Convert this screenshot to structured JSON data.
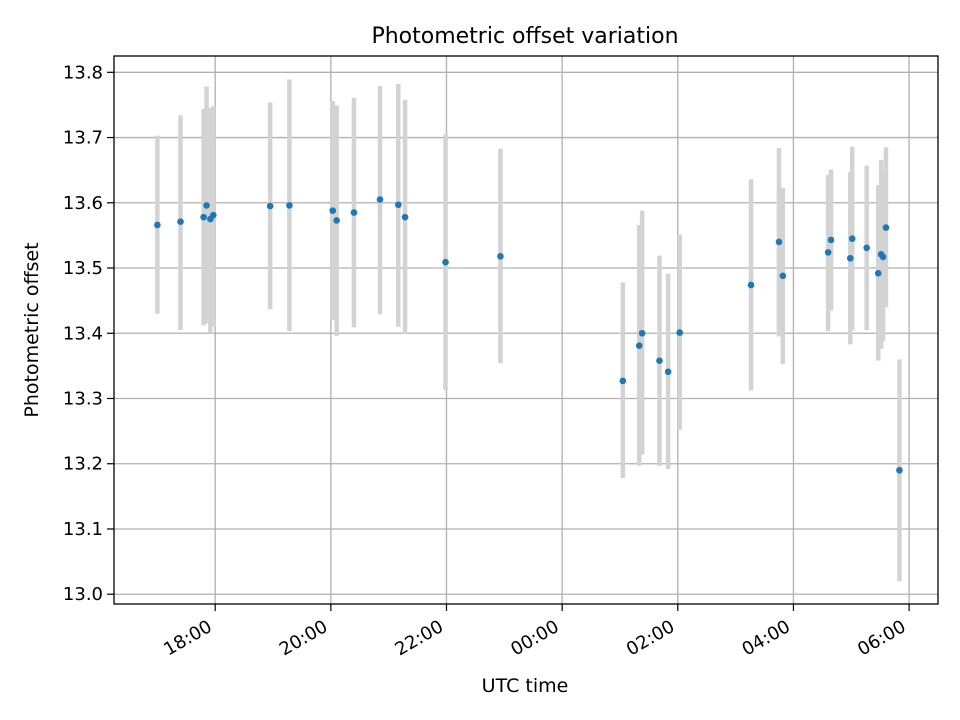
{
  "chart_data": {
    "type": "scatter",
    "title": "Photometric offset variation",
    "xlabel": "UTC time",
    "ylabel": "Photometric offset",
    "ylim": [
      12.985,
      13.825
    ],
    "xlim": [
      "16:15",
      "06:30+1"
    ],
    "grid": true,
    "colors": {
      "point": "#1f77b4",
      "errorbar": "#d3d3d3"
    },
    "x_ticks": [
      "18:00",
      "20:00",
      "22:00",
      "00:00",
      "02:00",
      "04:00",
      "06:00"
    ],
    "y_ticks": [
      "13.0",
      "13.1",
      "13.2",
      "13.3",
      "13.4",
      "13.5",
      "13.6",
      "13.7",
      "13.8"
    ],
    "series": [
      {
        "points": [
          {
            "x": "17:00",
            "y": 13.566,
            "low": 13.43,
            "high": 13.703
          },
          {
            "x": "17:24",
            "y": 13.571,
            "low": 13.405,
            "high": 13.734
          },
          {
            "x": "17:48",
            "y": 13.578,
            "low": 13.412,
            "high": 13.744
          },
          {
            "x": "17:51",
            "y": 13.596,
            "low": 13.415,
            "high": 13.778
          },
          {
            "x": "17:55",
            "y": 13.575,
            "low": 13.4,
            "high": 13.745
          },
          {
            "x": "17:58",
            "y": 13.581,
            "low": 13.41,
            "high": 13.748
          },
          {
            "x": "18:57",
            "y": 13.595,
            "low": 13.437,
            "high": 13.754
          },
          {
            "x": "19:17",
            "y": 13.596,
            "low": 13.403,
            "high": 13.789
          },
          {
            "x": "20:02",
            "y": 13.588,
            "low": 13.42,
            "high": 13.756
          },
          {
            "x": "20:06",
            "y": 13.573,
            "low": 13.396,
            "high": 13.749
          },
          {
            "x": "20:24",
            "y": 13.585,
            "low": 13.409,
            "high": 13.761
          },
          {
            "x": "20:51",
            "y": 13.605,
            "low": 13.429,
            "high": 13.779
          },
          {
            "x": "21:10",
            "y": 13.597,
            "low": 13.41,
            "high": 13.782
          },
          {
            "x": "21:17",
            "y": 13.578,
            "low": 13.399,
            "high": 13.758
          },
          {
            "x": "21:59",
            "y": 13.509,
            "low": 13.313,
            "high": 13.705
          },
          {
            "x": "22:56",
            "y": 13.518,
            "low": 13.354,
            "high": 13.683
          },
          {
            "x": "01:03",
            "y": 13.327,
            "low": 13.178,
            "high": 13.478
          },
          {
            "x": "01:20",
            "y": 13.381,
            "low": 13.197,
            "high": 13.566
          },
          {
            "x": "01:23",
            "y": 13.4,
            "low": 13.214,
            "high": 13.588
          },
          {
            "x": "01:41",
            "y": 13.358,
            "low": 13.197,
            "high": 13.519
          },
          {
            "x": "01:50",
            "y": 13.341,
            "low": 13.192,
            "high": 13.491
          },
          {
            "x": "02:02",
            "y": 13.401,
            "low": 13.252,
            "high": 13.551
          },
          {
            "x": "03:16",
            "y": 13.474,
            "low": 13.312,
            "high": 13.636
          },
          {
            "x": "03:45",
            "y": 13.54,
            "low": 13.395,
            "high": 13.684
          },
          {
            "x": "03:49",
            "y": 13.488,
            "low": 13.353,
            "high": 13.623
          },
          {
            "x": "04:36",
            "y": 13.524,
            "low": 13.403,
            "high": 13.643
          },
          {
            "x": "04:39",
            "y": 13.543,
            "low": 13.435,
            "high": 13.651
          },
          {
            "x": "04:59",
            "y": 13.515,
            "low": 13.383,
            "high": 13.647
          },
          {
            "x": "05:01",
            "y": 13.545,
            "low": 13.405,
            "high": 13.686
          },
          {
            "x": "05:16",
            "y": 13.531,
            "low": 13.405,
            "high": 13.657
          },
          {
            "x": "05:28",
            "y": 13.492,
            "low": 13.358,
            "high": 13.627
          },
          {
            "x": "05:31",
            "y": 13.521,
            "low": 13.376,
            "high": 13.666
          },
          {
            "x": "05:33",
            "y": 13.517,
            "low": 13.388,
            "high": 13.646
          },
          {
            "x": "05:36",
            "y": 13.562,
            "low": 13.44,
            "high": 13.685
          },
          {
            "x": "05:50",
            "y": 13.19,
            "low": 13.02,
            "high": 13.36
          }
        ]
      }
    ]
  }
}
